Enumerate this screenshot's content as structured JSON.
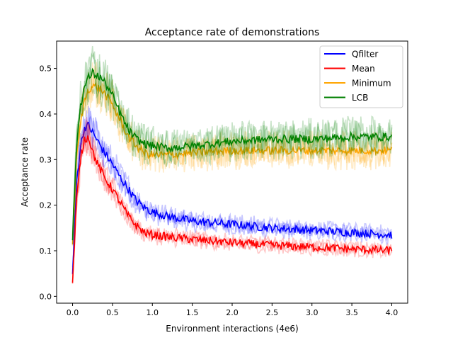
{
  "chart_data": {
    "type": "line",
    "title": "Acceptance rate of demonstrations",
    "xlabel": "Environment interactions (4e6)",
    "ylabel": "Acceptance rate",
    "xlim": [
      -0.2,
      4.2
    ],
    "ylim": [
      -0.015,
      0.56
    ],
    "xticks": [
      0.0,
      0.5,
      1.0,
      1.5,
      2.0,
      2.5,
      3.0,
      3.5,
      4.0
    ],
    "xtick_labels": [
      "0.0",
      "0.5",
      "1.0",
      "1.5",
      "2.0",
      "2.5",
      "3.0",
      "3.5",
      "4.0"
    ],
    "yticks": [
      0.0,
      0.1,
      0.2,
      0.3,
      0.4,
      0.5
    ],
    "ytick_labels": [
      "0.0",
      "0.1",
      "0.2",
      "0.3",
      "0.4",
      "0.5"
    ],
    "grid": false,
    "legend_position": "top-right",
    "series": [
      {
        "name": "Qfilter",
        "color": "#0000ff",
        "x": [
          0.0,
          0.05,
          0.1,
          0.15,
          0.2,
          0.25,
          0.3,
          0.4,
          0.5,
          0.6,
          0.7,
          0.8,
          0.9,
          1.0,
          1.2,
          1.5,
          2.0,
          2.5,
          3.0,
          3.5,
          4.0
        ],
        "y": [
          0.05,
          0.25,
          0.33,
          0.37,
          0.375,
          0.36,
          0.345,
          0.315,
          0.29,
          0.26,
          0.235,
          0.21,
          0.195,
          0.185,
          0.175,
          0.165,
          0.158,
          0.15,
          0.145,
          0.14,
          0.135
        ]
      },
      {
        "name": "Mean",
        "color": "#ff0000",
        "x": [
          0.0,
          0.05,
          0.1,
          0.15,
          0.2,
          0.25,
          0.3,
          0.4,
          0.5,
          0.6,
          0.7,
          0.8,
          0.9,
          1.0,
          1.2,
          1.5,
          2.0,
          2.5,
          3.0,
          3.5,
          4.0
        ],
        "y": [
          0.03,
          0.21,
          0.3,
          0.345,
          0.35,
          0.32,
          0.295,
          0.26,
          0.235,
          0.205,
          0.175,
          0.155,
          0.14,
          0.135,
          0.13,
          0.125,
          0.118,
          0.112,
          0.108,
          0.104,
          0.1
        ]
      },
      {
        "name": "Minimum",
        "color": "#ffa500",
        "x": [
          0.0,
          0.05,
          0.1,
          0.15,
          0.2,
          0.25,
          0.3,
          0.35,
          0.4,
          0.5,
          0.6,
          0.7,
          0.8,
          0.9,
          1.0,
          1.2,
          1.5,
          2.0,
          2.5,
          3.0,
          3.5,
          4.0
        ],
        "y": [
          0.12,
          0.3,
          0.38,
          0.43,
          0.455,
          0.46,
          0.46,
          0.455,
          0.445,
          0.42,
          0.385,
          0.35,
          0.33,
          0.315,
          0.31,
          0.31,
          0.315,
          0.32,
          0.32,
          0.32,
          0.32,
          0.32
        ]
      },
      {
        "name": "LCB",
        "color": "#008000",
        "x": [
          0.0,
          0.05,
          0.1,
          0.15,
          0.2,
          0.25,
          0.3,
          0.35,
          0.4,
          0.5,
          0.6,
          0.7,
          0.8,
          0.9,
          1.0,
          1.2,
          1.5,
          2.0,
          2.5,
          3.0,
          3.5,
          4.0
        ],
        "y": [
          0.13,
          0.33,
          0.42,
          0.46,
          0.48,
          0.49,
          0.485,
          0.48,
          0.47,
          0.44,
          0.4,
          0.365,
          0.345,
          0.335,
          0.33,
          0.325,
          0.33,
          0.34,
          0.345,
          0.345,
          0.35,
          0.35
        ]
      }
    ]
  }
}
